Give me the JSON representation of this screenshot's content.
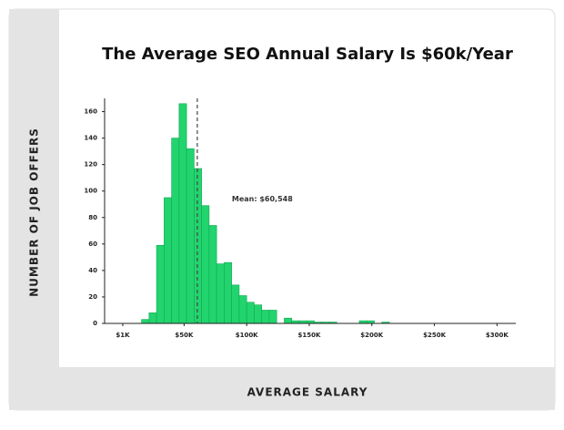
{
  "chart_data": {
    "type": "histogram",
    "title": "The Average SEO Annual Salary Is $60k/Year",
    "xlabel": "AVERAGE SALARY",
    "ylabel": "NUMBER OF JOB OFFERS",
    "bins": [
      16000,
      22000,
      28000,
      34000,
      40000,
      46000,
      52000,
      58000,
      64000,
      70000,
      76000,
      82000,
      88000,
      94000,
      100000,
      106000,
      112000,
      118000,
      124000,
      130000,
      136000,
      142000,
      148000,
      154000,
      160000,
      166000,
      172000,
      178000,
      184000,
      190000,
      196000,
      202000,
      208000,
      214000
    ],
    "counts": [
      3,
      8,
      59,
      95,
      140,
      166,
      132,
      117,
      89,
      74,
      45,
      46,
      29,
      21,
      16,
      14,
      10,
      10,
      0,
      4,
      2,
      2,
      2,
      1,
      1,
      1,
      0,
      0,
      0,
      2,
      2,
      0,
      1
    ],
    "color": "#22d46e",
    "mean": 60548,
    "mean_label": "Mean: $60,548",
    "xlim": [
      -13500,
      315000
    ],
    "ylim": [
      0,
      170
    ],
    "xticks": [
      {
        "value": 1000,
        "label": "$1K"
      },
      {
        "value": 50000,
        "label": "$50K"
      },
      {
        "value": 100000,
        "label": "$100K"
      },
      {
        "value": 150000,
        "label": "$150K"
      },
      {
        "value": 200000,
        "label": "$200K"
      },
      {
        "value": 250000,
        "label": "$250K"
      },
      {
        "value": 300000,
        "label": "$300K"
      }
    ],
    "yticks": [
      0,
      20,
      40,
      60,
      80,
      100,
      120,
      140,
      160
    ]
  }
}
